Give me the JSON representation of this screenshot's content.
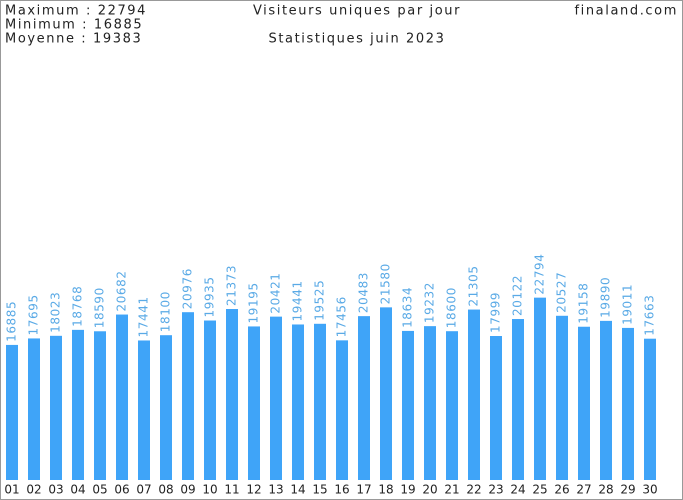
{
  "chart_data": {
    "type": "bar",
    "title": "Visiteurs uniques par jour",
    "subtitle": "Statistiques juin 2023",
    "source": "finaland.com",
    "stats": [
      "Maximum : 22794",
      "Minimum : 16885",
      "Moyenne : 19383"
    ],
    "categories": [
      "01",
      "02",
      "03",
      "04",
      "05",
      "06",
      "07",
      "08",
      "09",
      "10",
      "11",
      "12",
      "13",
      "14",
      "15",
      "16",
      "17",
      "18",
      "19",
      "20",
      "21",
      "22",
      "23",
      "24",
      "25",
      "26",
      "27",
      "28",
      "29",
      "30"
    ],
    "values": [
      16885,
      17695,
      18023,
      18768,
      18590,
      20682,
      17441,
      18100,
      20976,
      19935,
      21373,
      19195,
      20421,
      19441,
      19525,
      17456,
      20483,
      21580,
      18634,
      19232,
      18600,
      21305,
      17999,
      20122,
      22794,
      20527,
      19158,
      19890,
      19011,
      17663
    ],
    "color": "#3fa4f8",
    "label_color": "#5aaae6",
    "ylim": [
      0,
      50000
    ]
  }
}
